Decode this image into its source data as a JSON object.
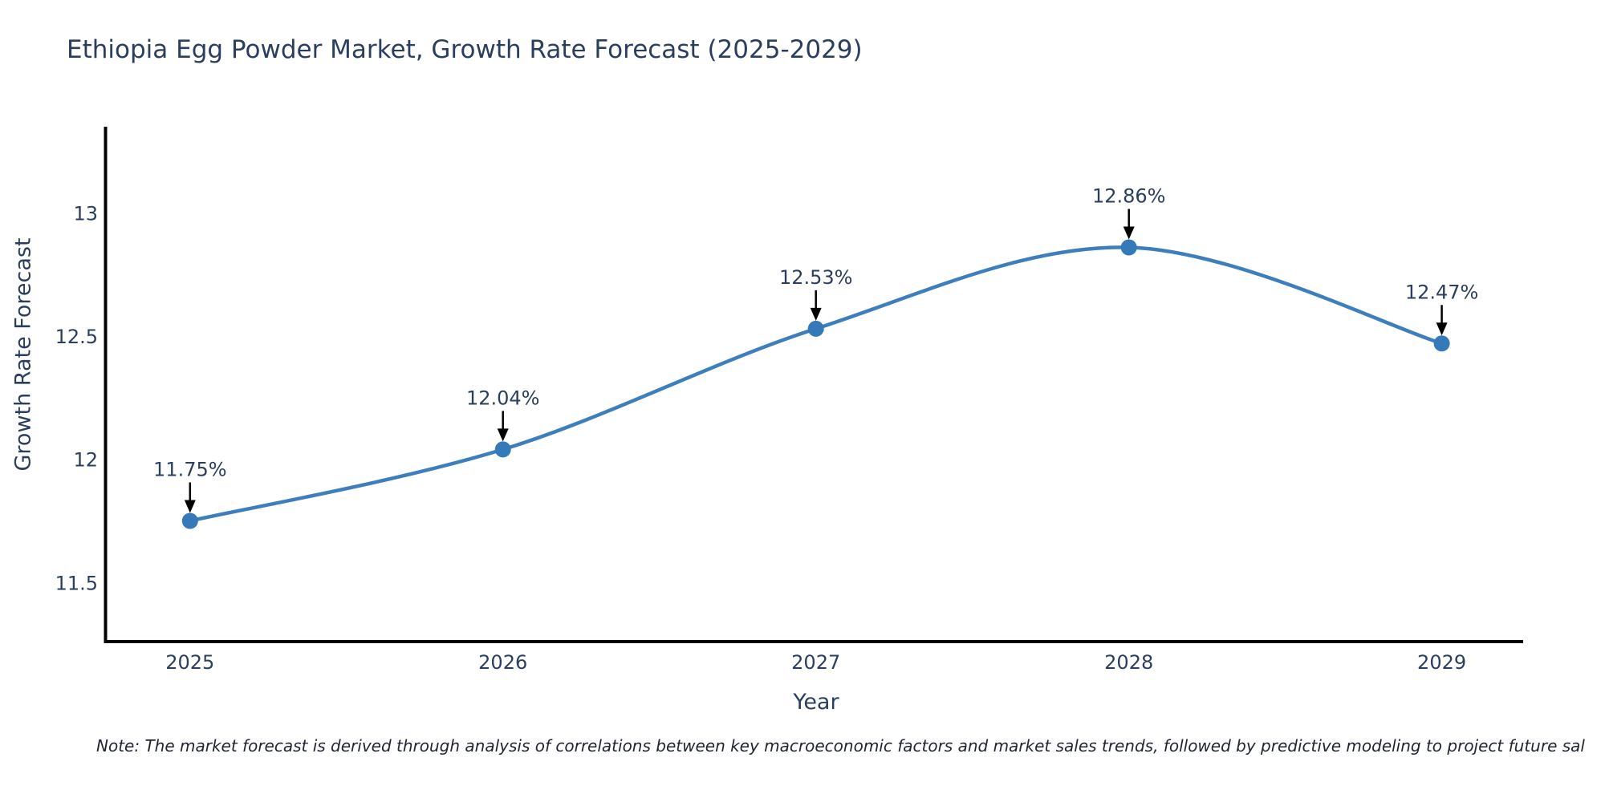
{
  "chart_data": {
    "type": "line",
    "title": "Ethiopia Egg Powder Market, Growth Rate Forecast (2025-2029)",
    "xlabel": "Year",
    "ylabel": "Growth Rate Forecast",
    "x": [
      2025,
      2026,
      2027,
      2028,
      2029
    ],
    "values": [
      11.75,
      12.04,
      12.53,
      12.86,
      12.47
    ],
    "point_labels": [
      "11.75%",
      "12.04%",
      "12.53%",
      "12.86%",
      "12.47%"
    ],
    "x_tick_labels": [
      "2025",
      "2026",
      "2027",
      "2028",
      "2029"
    ],
    "yticks": [
      11.5,
      12,
      12.5,
      13
    ],
    "ytick_labels": [
      "11.5",
      "12",
      "12.5",
      "13"
    ],
    "xlim": [
      2024.73,
      2029.26
    ],
    "ylim": [
      11.26,
      13.35
    ],
    "line_shape": "spline",
    "grid": false,
    "legend": "none",
    "colors": {
      "line": "#3d7ebc",
      "marker": "#3579b8",
      "axis": "#000000",
      "text": "#2a3f5f",
      "annotation_arrow": "#000000"
    },
    "note": "Note: The market forecast is derived through analysis of correlations between key macroeconomic factors and market sales trends, followed by predictive modeling to project future sal"
  }
}
